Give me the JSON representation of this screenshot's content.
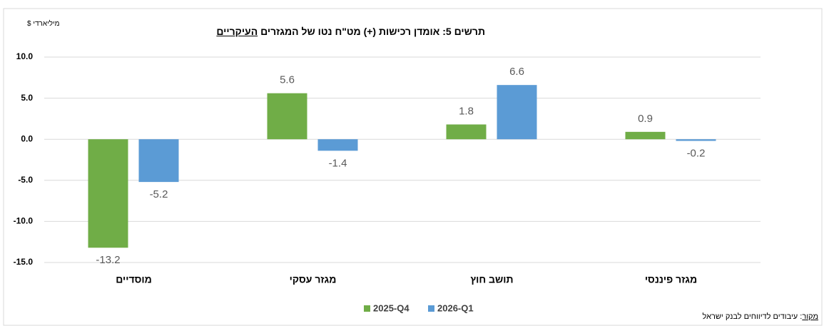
{
  "chart_data": {
    "type": "bar",
    "title": "תרשים 5: אומדן רכישות (+) מט\"ח נטו של המגזרים",
    "title_emphasis": "העיקריים",
    "y_unit": "מיליארדי $",
    "source_label": "מקור",
    "source_text": ": עיבודים לדיווחים לבנק ישראל",
    "categories": [
      "מוסדיים",
      "מגזר עסקי",
      "תושב חוץ",
      "מגזר פיננסי"
    ],
    "series": [
      {
        "name": "2025-Q4",
        "color": "#70ad47",
        "values": [
          -13.2,
          5.6,
          1.8,
          0.9
        ]
      },
      {
        "name": "2026-Q1",
        "color": "#5b9bd5",
        "values": [
          -5.2,
          -1.4,
          6.6,
          -0.2
        ]
      }
    ],
    "ylim": [
      -15,
      10
    ],
    "yticks": [
      {
        "value": 10,
        "label": "10.0"
      },
      {
        "value": 5,
        "label": "5.0"
      },
      {
        "value": 0,
        "label": "0.0"
      },
      {
        "value": -5,
        "label": "-5.0"
      },
      {
        "value": -10,
        "label": "-10.0"
      },
      {
        "value": -15,
        "label": "-15.0"
      }
    ],
    "grid": true
  }
}
